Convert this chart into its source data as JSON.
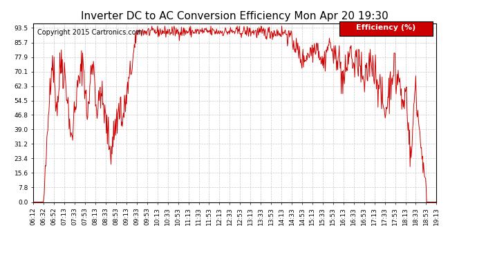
{
  "title": "Inverter DC to AC Conversion Efficiency Mon Apr 20 19:30",
  "copyright_text": "Copyright 2015 Cartronics.com",
  "legend_label": "Efficiency (%)",
  "legend_bg": "#cc0000",
  "legend_text_color": "#ffffff",
  "line_color": "#cc0000",
  "background_color": "#ffffff",
  "grid_color": "#bbbbbb",
  "y_ticks": [
    0.0,
    7.8,
    15.6,
    23.4,
    31.2,
    39.0,
    46.8,
    54.5,
    62.3,
    70.1,
    77.9,
    85.7,
    93.5
  ],
  "x_tick_labels": [
    "06:12",
    "06:32",
    "06:52",
    "07:13",
    "07:33",
    "07:53",
    "08:13",
    "08:33",
    "08:53",
    "09:13",
    "09:33",
    "09:53",
    "10:13",
    "10:33",
    "10:53",
    "11:13",
    "11:33",
    "11:53",
    "12:13",
    "12:33",
    "12:53",
    "13:13",
    "13:33",
    "13:53",
    "14:13",
    "14:33",
    "14:53",
    "15:13",
    "15:33",
    "15:53",
    "16:13",
    "16:33",
    "16:53",
    "17:13",
    "17:33",
    "17:53",
    "18:13",
    "18:33",
    "18:53",
    "19:13"
  ],
  "ylim": [
    0.0,
    96.0
  ],
  "title_fontsize": 11,
  "copyright_fontsize": 7,
  "tick_fontsize": 6.5,
  "legend_fontsize": 8
}
